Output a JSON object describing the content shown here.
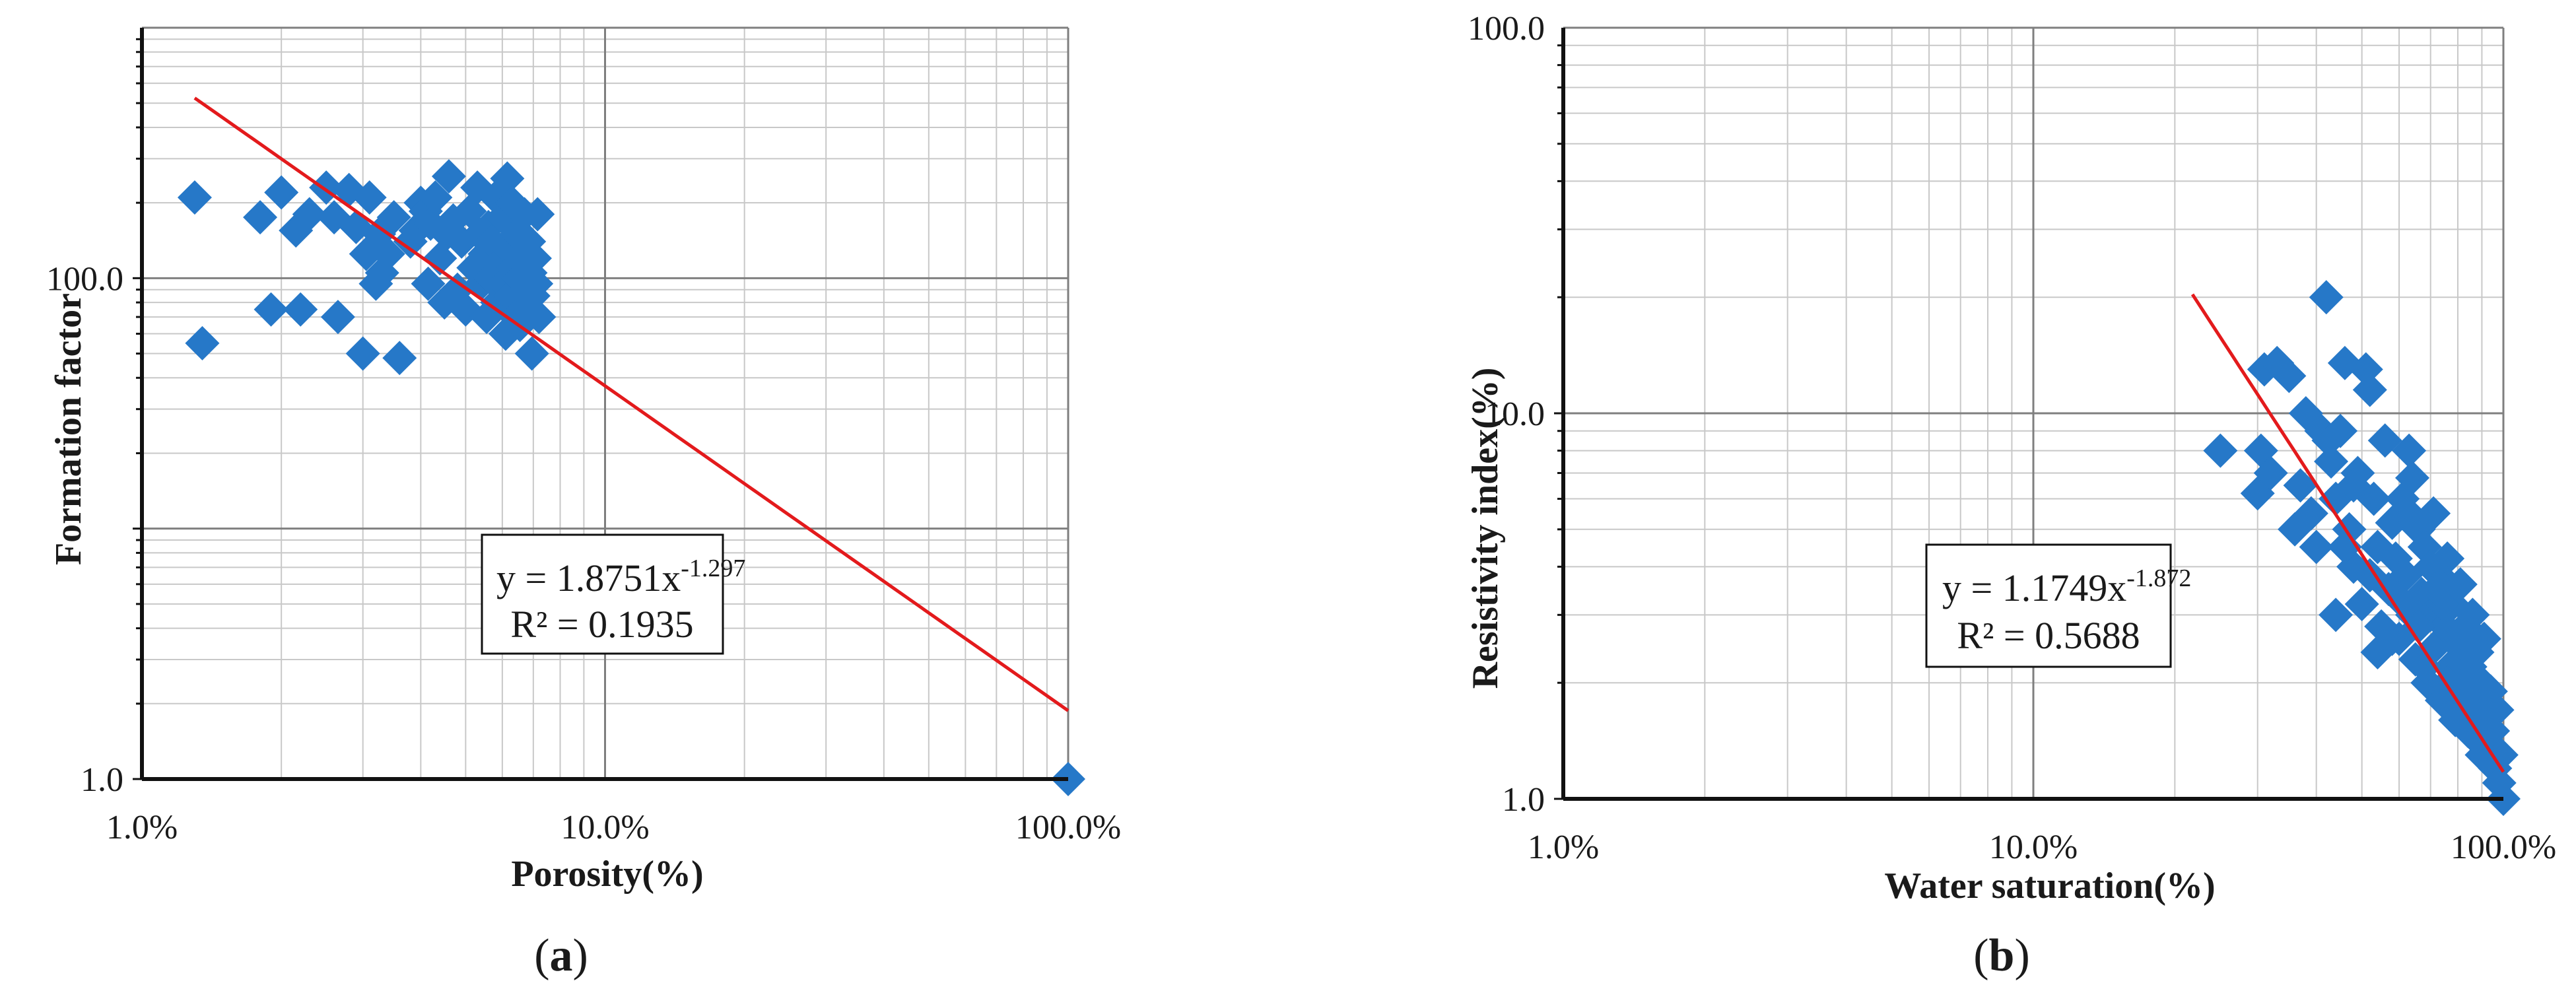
{
  "figure": {
    "marker_color": "#2678c8",
    "fit_color": "#e31a1c",
    "grid_major_color": "#7f7f7f",
    "grid_minor_color": "#c8c8c8"
  },
  "chart_data": [
    {
      "type": "scatter",
      "panel_label_parts": [
        "(",
        "a",
        ")"
      ],
      "xlabel": "Porosity(%)",
      "ylabel": "Formation factor",
      "x_scale": "log",
      "y_scale": "log",
      "xlim": [
        1,
        100
      ],
      "ylim": [
        1,
        1000
      ],
      "x_tick_labels": [
        {
          "value": 1,
          "label": "1.0%"
        },
        {
          "value": 10,
          "label": "10.0%"
        },
        {
          "value": 100,
          "label": "100.0%"
        }
      ],
      "y_tick_labels": [
        {
          "value": 1,
          "label": "1.0"
        },
        {
          "value": 100,
          "label": "100.0"
        }
      ],
      "grid": true,
      "equation": {
        "prefix": "y = 1.8751x",
        "exponent": "-1.297",
        "r2": "R² = 0.1935"
      },
      "fit": {
        "a": 1.8751,
        "b": -1.297,
        "x_range": [
          1.3,
          100
        ]
      },
      "points": [
        [
          1.3,
          210
        ],
        [
          1.35,
          55
        ],
        [
          1.8,
          175
        ],
        [
          1.9,
          75
        ],
        [
          2.0,
          220
        ],
        [
          2.15,
          155
        ],
        [
          2.2,
          75
        ],
        [
          2.3,
          180
        ],
        [
          2.5,
          230
        ],
        [
          2.6,
          175
        ],
        [
          2.65,
          70
        ],
        [
          2.8,
          225
        ],
        [
          2.9,
          160
        ],
        [
          3.0,
          50
        ],
        [
          3.05,
          125
        ],
        [
          3.1,
          210
        ],
        [
          3.2,
          95
        ],
        [
          3.25,
          150
        ],
        [
          3.3,
          105
        ],
        [
          3.4,
          125
        ],
        [
          3.5,
          175
        ],
        [
          3.6,
          48
        ],
        [
          3.8,
          140
        ],
        [
          3.9,
          155
        ],
        [
          4.0,
          200
        ],
        [
          4.1,
          185
        ],
        [
          4.15,
          95
        ],
        [
          4.2,
          165
        ],
        [
          4.3,
          210
        ],
        [
          4.4,
          120
        ],
        [
          4.5,
          80
        ],
        [
          4.55,
          150
        ],
        [
          4.6,
          255
        ],
        [
          4.7,
          170
        ],
        [
          4.8,
          90
        ],
        [
          4.9,
          140
        ],
        [
          5.0,
          75
        ],
        [
          5.1,
          185
        ],
        [
          5.2,
          110
        ],
        [
          5.3,
          230
        ],
        [
          5.35,
          150
        ],
        [
          5.4,
          95
        ],
        [
          5.5,
          125
        ],
        [
          5.55,
          70
        ],
        [
          5.6,
          160
        ],
        [
          5.65,
          100
        ],
        [
          5.7,
          140
        ],
        [
          5.8,
          210
        ],
        [
          5.85,
          80
        ],
        [
          5.9,
          115
        ],
        [
          6.0,
          175
        ],
        [
          6.05,
          95
        ],
        [
          6.1,
          60
        ],
        [
          6.15,
          250
        ],
        [
          6.2,
          130
        ],
        [
          6.25,
          85
        ],
        [
          6.3,
          200
        ],
        [
          6.35,
          110
        ],
        [
          6.4,
          70
        ],
        [
          6.45,
          150
        ],
        [
          6.5,
          100
        ],
        [
          6.55,
          65
        ],
        [
          6.6,
          120
        ],
        [
          6.7,
          180
        ],
        [
          6.75,
          90
        ],
        [
          6.8,
          75
        ],
        [
          6.85,
          140
        ],
        [
          6.9,
          105
        ],
        [
          6.95,
          50
        ],
        [
          7.0,
          85
        ],
        [
          7.05,
          120
        ],
        [
          7.1,
          95
        ],
        [
          7.15,
          180
        ],
        [
          7.2,
          70
        ],
        [
          100,
          1
        ]
      ]
    },
    {
      "type": "scatter",
      "panel_label_parts": [
        "(",
        "b",
        ")"
      ],
      "xlabel": "Water saturation(%)",
      "ylabel": "Resistivity index(%)",
      "x_scale": "log",
      "y_scale": "log",
      "xlim": [
        1,
        100
      ],
      "ylim": [
        1,
        100
      ],
      "x_tick_labels": [
        {
          "value": 1,
          "label": "1.0%"
        },
        {
          "value": 10,
          "label": "10.0%"
        },
        {
          "value": 100,
          "label": "100.0%"
        }
      ],
      "y_tick_labels": [
        {
          "value": 1,
          "label": "1.0"
        },
        {
          "value": 10,
          "label": "10.0"
        },
        {
          "value": 100,
          "label": "100.0"
        }
      ],
      "grid": true,
      "equation": {
        "prefix": "y = 1.1749x",
        "exponent": "-1.872",
        "r2": "R² = 0.5688"
      },
      "fit": {
        "a": 1.1749,
        "b": -1.872,
        "x_range": [
          21.8,
          100
        ]
      },
      "points": [
        [
          25,
          8.0
        ],
        [
          30,
          6.2
        ],
        [
          30.5,
          8.0
        ],
        [
          31,
          13.0
        ],
        [
          32,
          7.0
        ],
        [
          33,
          13.5
        ],
        [
          35,
          12.5
        ],
        [
          37,
          6.5
        ],
        [
          38,
          10.0
        ],
        [
          39,
          5.5
        ],
        [
          40,
          4.5
        ],
        [
          41,
          9.0
        ],
        [
          42,
          20.0
        ],
        [
          42.5,
          8.5
        ],
        [
          43,
          7.5
        ],
        [
          44,
          6.0
        ],
        [
          45,
          9.0
        ],
        [
          46,
          13.5
        ],
        [
          47,
          5.0
        ],
        [
          48,
          4.0
        ],
        [
          49,
          7.0
        ],
        [
          50,
          3.2
        ],
        [
          51,
          13.0
        ],
        [
          52,
          11.5
        ],
        [
          53,
          6.0
        ],
        [
          54,
          4.5
        ],
        [
          55,
          2.8
        ],
        [
          56,
          8.5
        ],
        [
          57,
          3.5
        ],
        [
          58,
          5.2
        ],
        [
          59,
          4.2
        ],
        [
          60,
          2.6
        ],
        [
          61,
          6.0
        ],
        [
          62,
          3.8
        ],
        [
          63,
          8.0
        ],
        [
          64,
          3.0
        ],
        [
          65,
          2.3
        ],
        [
          66,
          5.0
        ],
        [
          67,
          3.4
        ],
        [
          68,
          4.5
        ],
        [
          69,
          2.0
        ],
        [
          70,
          3.0
        ],
        [
          71,
          5.5
        ],
        [
          72,
          2.5
        ],
        [
          73,
          3.8
        ],
        [
          74,
          1.8
        ],
        [
          75,
          2.8
        ],
        [
          76,
          4.2
        ],
        [
          77,
          2.2
        ],
        [
          78,
          3.2
        ],
        [
          79,
          1.6
        ],
        [
          80,
          2.5
        ],
        [
          81,
          3.6
        ],
        [
          82,
          2.0
        ],
        [
          83,
          2.8
        ],
        [
          84,
          1.5
        ],
        [
          85,
          2.2
        ],
        [
          86,
          3.0
        ],
        [
          87,
          1.8
        ],
        [
          88,
          2.4
        ],
        [
          89,
          1.4
        ],
        [
          90,
          2.0
        ],
        [
          91,
          2.6
        ],
        [
          92,
          1.6
        ],
        [
          93,
          1.3
        ],
        [
          94,
          1.9
        ],
        [
          95,
          1.5
        ],
        [
          96,
          1.2
        ],
        [
          97,
          1.7
        ],
        [
          98,
          1.1
        ],
        [
          99,
          1.3
        ],
        [
          100,
          1.0
        ],
        [
          44,
          3.0
        ],
        [
          46,
          4.5
        ],
        [
          52,
          3.8
        ],
        [
          58,
          2.6
        ],
        [
          62,
          5.6
        ],
        [
          66,
          2.8
        ],
        [
          70,
          4.0
        ],
        [
          74,
          3.2
        ],
        [
          78,
          2.0
        ],
        [
          82,
          1.7
        ],
        [
          86,
          1.5
        ],
        [
          90,
          1.3
        ],
        [
          36,
          5.0
        ],
        [
          48,
          6.5
        ],
        [
          54,
          2.4
        ],
        [
          60,
          3.3
        ],
        [
          64,
          6.8
        ],
        [
          68,
          2.2
        ],
        [
          72,
          3.5
        ],
        [
          76,
          2.0
        ],
        [
          80,
          1.9
        ],
        [
          84,
          2.4
        ],
        [
          88,
          1.6
        ],
        [
          92,
          1.9
        ]
      ]
    }
  ]
}
